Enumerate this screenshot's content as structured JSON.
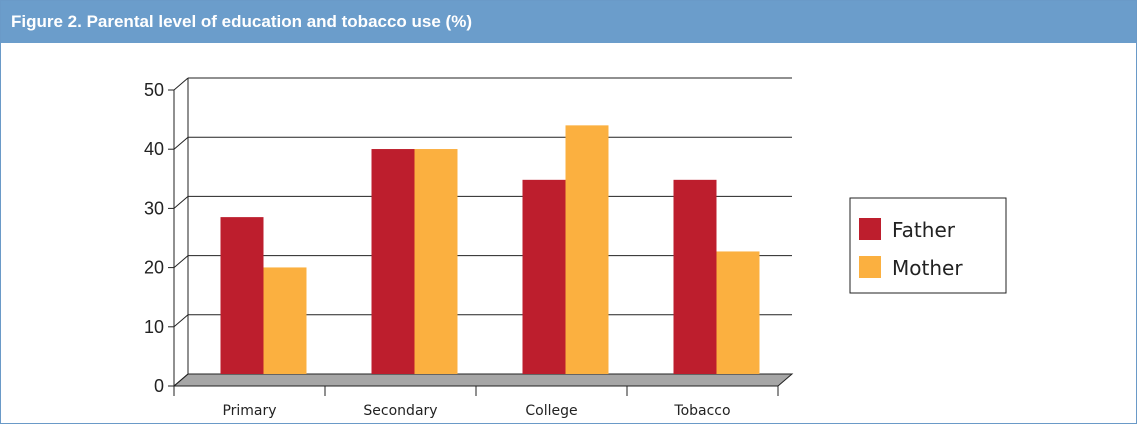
{
  "figure": {
    "title": "Figure 2.  Parental level of education and tobacco use (%)"
  },
  "colors": {
    "header": "#6b9dcb",
    "father": "#bd1e2d",
    "mother": "#fbb040",
    "floor": "#a6a6a6"
  },
  "chart_data": {
    "type": "bar",
    "title": "",
    "xlabel": "",
    "ylabel": "",
    "categories": [
      "Primary",
      "Secondary",
      "College",
      "Tobacco"
    ],
    "series": [
      {
        "name": "Father",
        "values": [
          26.5,
          38,
          32.8,
          32.8
        ]
      },
      {
        "name": "Mother",
        "values": [
          18,
          38,
          42,
          20.7
        ]
      }
    ],
    "ylim": [
      0,
      50
    ],
    "yticks": [
      0,
      10,
      20,
      30,
      40,
      50
    ],
    "grid": true,
    "legend_position": "right"
  }
}
